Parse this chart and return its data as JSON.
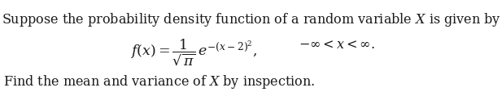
{
  "line1": "Suppose the probability density function of a random variable $X$ is given by",
  "line2": "$f(x) = \\dfrac{1}{\\sqrt{\\pi}}\\,e^{-(x-2)^2},$",
  "line2_right": "$-\\infty < x < \\infty.$",
  "line3": "Find the mean and variance of $X$ by inspection.",
  "bg_color": "#ffffff",
  "text_color": "#1a1a1a",
  "font_size_line1": 11.5,
  "font_size_formula": 12.5,
  "font_size_line3": 11.5,
  "fig_width": 6.17,
  "fig_height": 1.19,
  "dpi": 100
}
